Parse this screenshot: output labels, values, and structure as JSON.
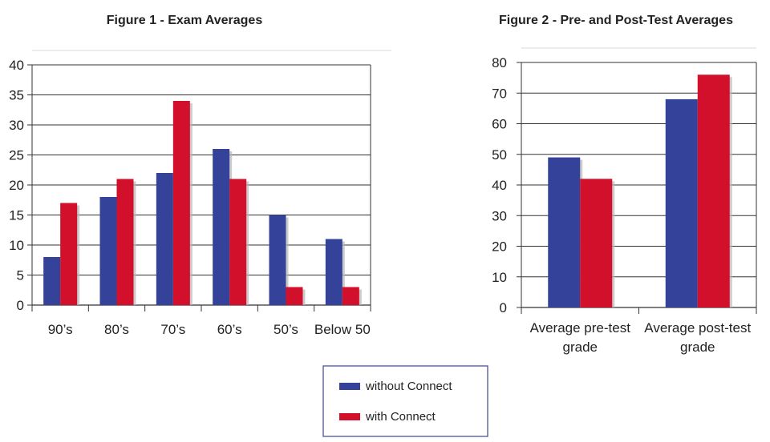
{
  "colors": {
    "without": "#354299",
    "with": "#d2102c",
    "bar_shadow": "#b7b7b7",
    "grid": "#222222",
    "legend_border": "#3b4a86"
  },
  "legend": {
    "items": [
      {
        "label": "without Connect",
        "color": "#354299"
      },
      {
        "label": "with Connect",
        "color": "#d2102c"
      }
    ]
  },
  "chart_data": [
    {
      "type": "bar",
      "title": "Figure 1 - Exam Averages",
      "categories": [
        "90’s",
        "80’s",
        "70’s",
        "60’s",
        "50’s",
        "Below 50"
      ],
      "series": [
        {
          "name": "without Connect",
          "values": [
            8,
            18,
            22,
            26,
            15,
            11
          ]
        },
        {
          "name": "with Connect",
          "values": [
            17,
            21,
            34,
            21,
            3,
            3
          ]
        }
      ],
      "ylim": [
        0,
        40
      ],
      "yticks": [
        0,
        5,
        10,
        15,
        20,
        25,
        30,
        35,
        40
      ],
      "grid": true,
      "legend": "bottom-center"
    },
    {
      "type": "bar",
      "title": "Figure 2 - Pre- and Post-Test Averages",
      "categories": [
        [
          "Average pre-test",
          "grade"
        ],
        [
          "Average post-test",
          "grade"
        ]
      ],
      "series": [
        {
          "name": "without Connect",
          "values": [
            49,
            68
          ]
        },
        {
          "name": "with Connect",
          "values": [
            42,
            76
          ]
        }
      ],
      "ylim": [
        0,
        80
      ],
      "yticks": [
        0,
        10,
        20,
        30,
        40,
        50,
        60,
        70,
        80
      ],
      "grid": true,
      "legend": "bottom-center"
    }
  ]
}
